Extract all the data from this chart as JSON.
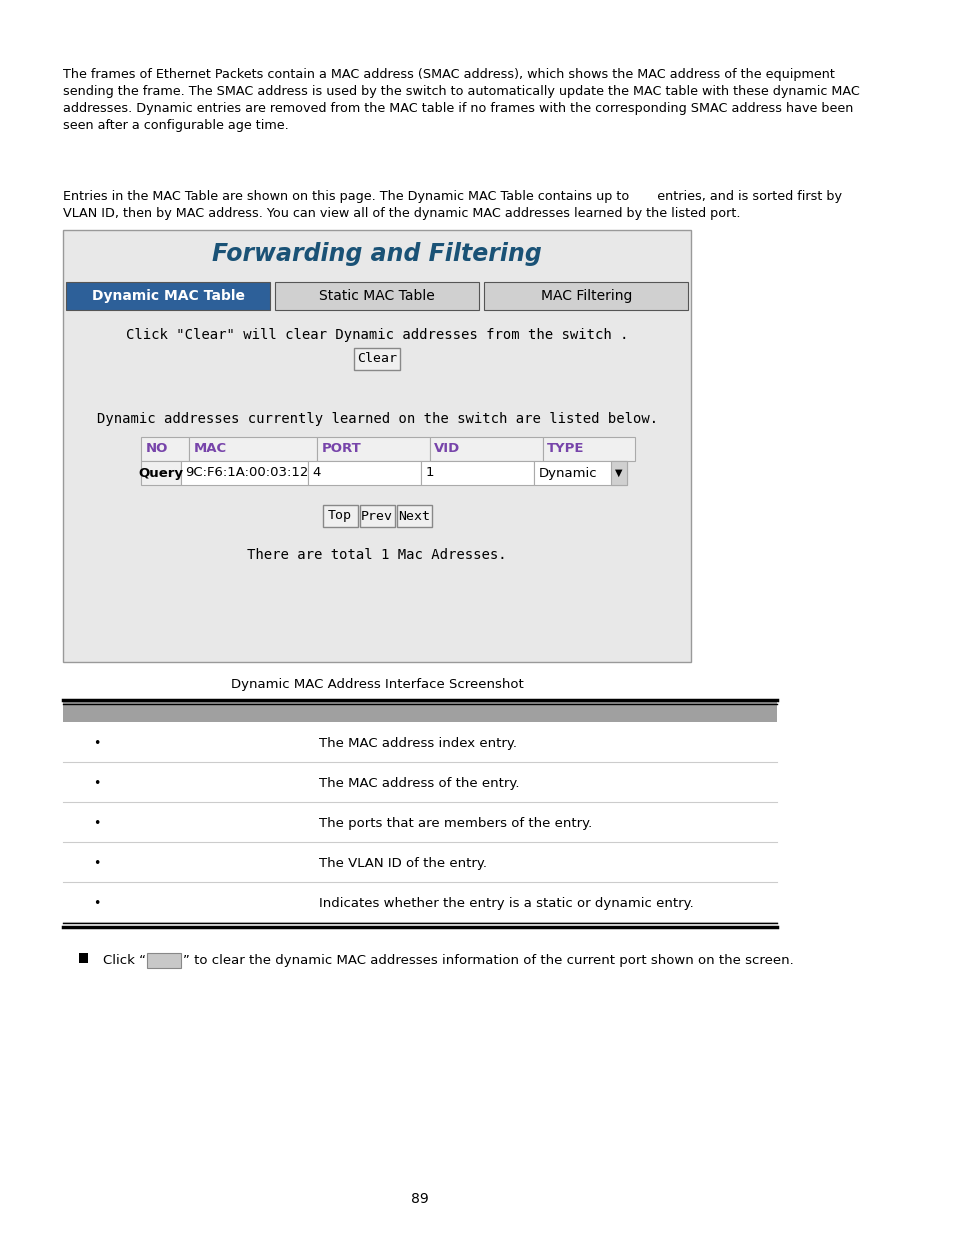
{
  "bg_color": "#ffffff",
  "para1": "The frames of Ethernet Packets contain a MAC address (SMAC address), which shows the MAC address of the equipment\nsending the frame. The SMAC address is used by the switch to automatically update the MAC table with these dynamic MAC\naddresses. Dynamic entries are removed from the MAC table if no frames with the corresponding SMAC address have been\nseen after a configurable age time.",
  "para2": "Entries in the MAC Table are shown on this page. The Dynamic MAC Table contains up to       entries, and is sorted first by\nVLAN ID, then by MAC address. You can view all of the dynamic MAC addresses learned by the listed port.",
  "screenshot_title": "Forwarding and Filtering",
  "tab1": "Dynamic MAC Table",
  "tab2": "Static MAC Table",
  "tab3": "MAC Filtering",
  "tab1_color": "#2d6099",
  "tab_text1_color": "#ffffff",
  "clear_text": "Click \"Clear\" will clear Dynamic addresses from the switch .",
  "dynamic_text": "Dynamic addresses currently learned on the switch are listed below.",
  "col_headers": [
    "NO",
    "MAC",
    "PORT",
    "VID",
    "TYPE"
  ],
  "col_header_color": "#7744aa",
  "row_label": "Query",
  "row_data": [
    "9C:F6:1A:00:03:12",
    "4",
    "1",
    "Dynamic"
  ],
  "nav_buttons": [
    "Top",
    "Prev",
    "Next"
  ],
  "total_text": "There are total 1 Mac Adresses.",
  "caption": "Dynamic MAC Address Interface Screenshot",
  "table_rows": [
    {
      "text": "The MAC address index entry."
    },
    {
      "text": "The MAC address of the entry."
    },
    {
      "text": "The ports that are members of the entry."
    },
    {
      "text": "The VLAN ID of the entry."
    },
    {
      "text": "Indicates whether the entry is a static or dynamic entry."
    }
  ],
  "page_number": "89",
  "screenshot_bg": "#e8e8e8",
  "title_color": "#1a5276"
}
